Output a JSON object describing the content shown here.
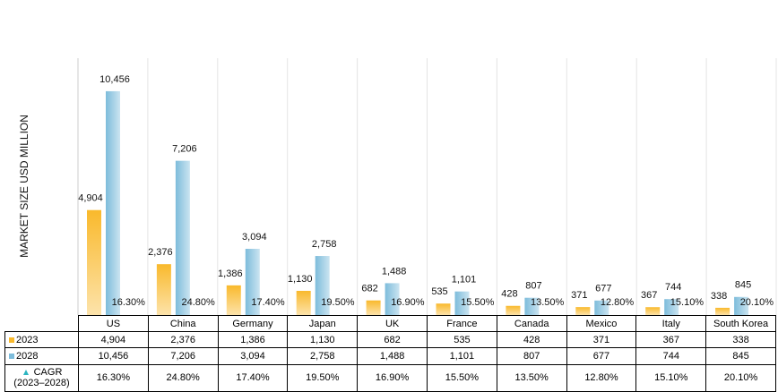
{
  "chart_data": {
    "type": "bar",
    "y_label": "MARKET SIZE USD MILLION",
    "categories": [
      "US",
      "China",
      "Germany",
      "Japan",
      "UK",
      "France",
      "Canada",
      "Mexico",
      "Italy",
      "South Korea"
    ],
    "series": [
      {
        "name": "2023",
        "color": "#f9b92c",
        "values": [
          4904,
          2376,
          1386,
          1130,
          682,
          535,
          428,
          371,
          367,
          338
        ],
        "value_labels": [
          "4,904",
          "2,376",
          "1,386",
          "1,130",
          "682",
          "535",
          "428",
          "371",
          "367",
          "338"
        ]
      },
      {
        "name": "2028",
        "color": "#7dbcdb",
        "values": [
          10456,
          7206,
          3094,
          2758,
          1488,
          1101,
          807,
          677,
          744,
          845
        ],
        "value_labels": [
          "10,456",
          "7,206",
          "3,094",
          "2,758",
          "1,488",
          "1,101",
          "807",
          "677",
          "744",
          "845"
        ]
      },
      {
        "name": "CAGR (2023–2028)",
        "color": "#2bb5c0",
        "marker": "triangle",
        "values": [
          16.3,
          24.8,
          17.4,
          19.5,
          16.9,
          15.5,
          13.5,
          12.8,
          15.1,
          20.1
        ],
        "value_labels": [
          "16.30%",
          "24.80%",
          "17.40%",
          "19.50%",
          "16.90%",
          "15.50%",
          "13.50%",
          "12.80%",
          "15.10%",
          "20.10%"
        ]
      }
    ],
    "ylim": [
      0,
      12000
    ],
    "grid": "x"
  }
}
